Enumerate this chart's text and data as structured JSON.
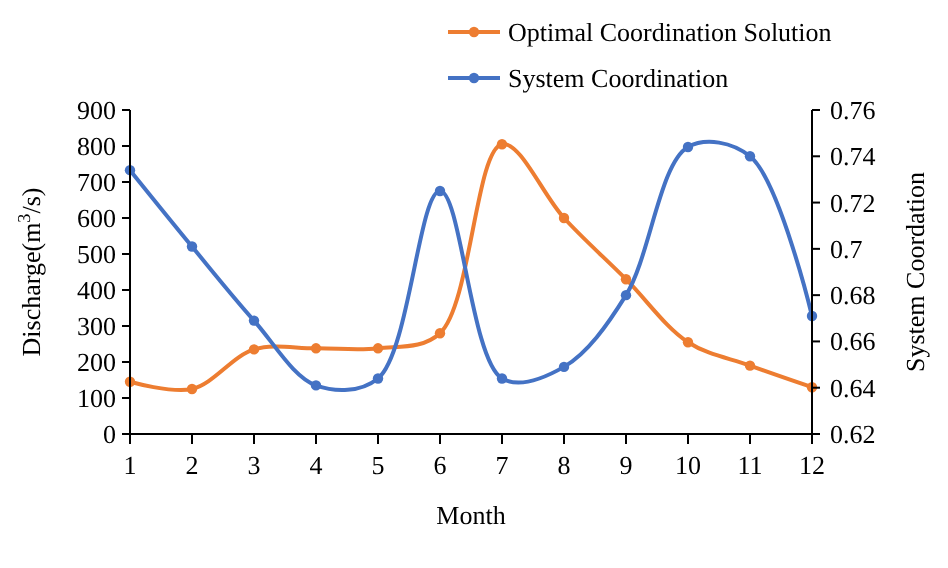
{
  "chart_data": {
    "type": "line",
    "xlabel": "Month",
    "ylabel": "Discharge(m$^{3}$/s)",
    "y2label": "System Coordation",
    "x": [
      1,
      2,
      3,
      4,
      5,
      6,
      7,
      8,
      9,
      10,
      11,
      12
    ],
    "xlim": [
      1,
      12
    ],
    "xticks": [
      1,
      2,
      3,
      4,
      5,
      6,
      7,
      8,
      9,
      10,
      11,
      12
    ],
    "ylim": [
      0,
      900
    ],
    "yticks": [
      0,
      100,
      200,
      300,
      400,
      500,
      600,
      700,
      800,
      900
    ],
    "y2lim": [
      0.62,
      0.76
    ],
    "y2ticks": [
      {
        "value": 0.62,
        "label": "0.62"
      },
      {
        "value": 0.64,
        "label": "0.64"
      },
      {
        "value": 0.66,
        "label": "0.66"
      },
      {
        "value": 0.68,
        "label": "0.68"
      },
      {
        "value": 0.7,
        "label": "0.7"
      },
      {
        "value": 0.72,
        "label": "0.72"
      },
      {
        "value": 0.74,
        "label": "0.74"
      },
      {
        "value": 0.76,
        "label": "0.76"
      }
    ],
    "series": [
      {
        "name": "Optimal Coordination Solution",
        "color": "#ed7d31",
        "values": [
          145,
          125,
          235,
          238,
          238,
          280,
          805,
          600,
          430,
          255,
          190,
          130
        ]
      },
      {
        "name": "System Coordination",
        "color": "#4472c4",
        "axis": "y2",
        "values": [
          0.734,
          0.701,
          0.669,
          0.641,
          0.644,
          0.725,
          0.644,
          0.649,
          0.68,
          0.744,
          0.74,
          0.671
        ]
      }
    ],
    "marker": "circle",
    "line_style": "solid",
    "legend": "top right",
    "grid": false
  }
}
